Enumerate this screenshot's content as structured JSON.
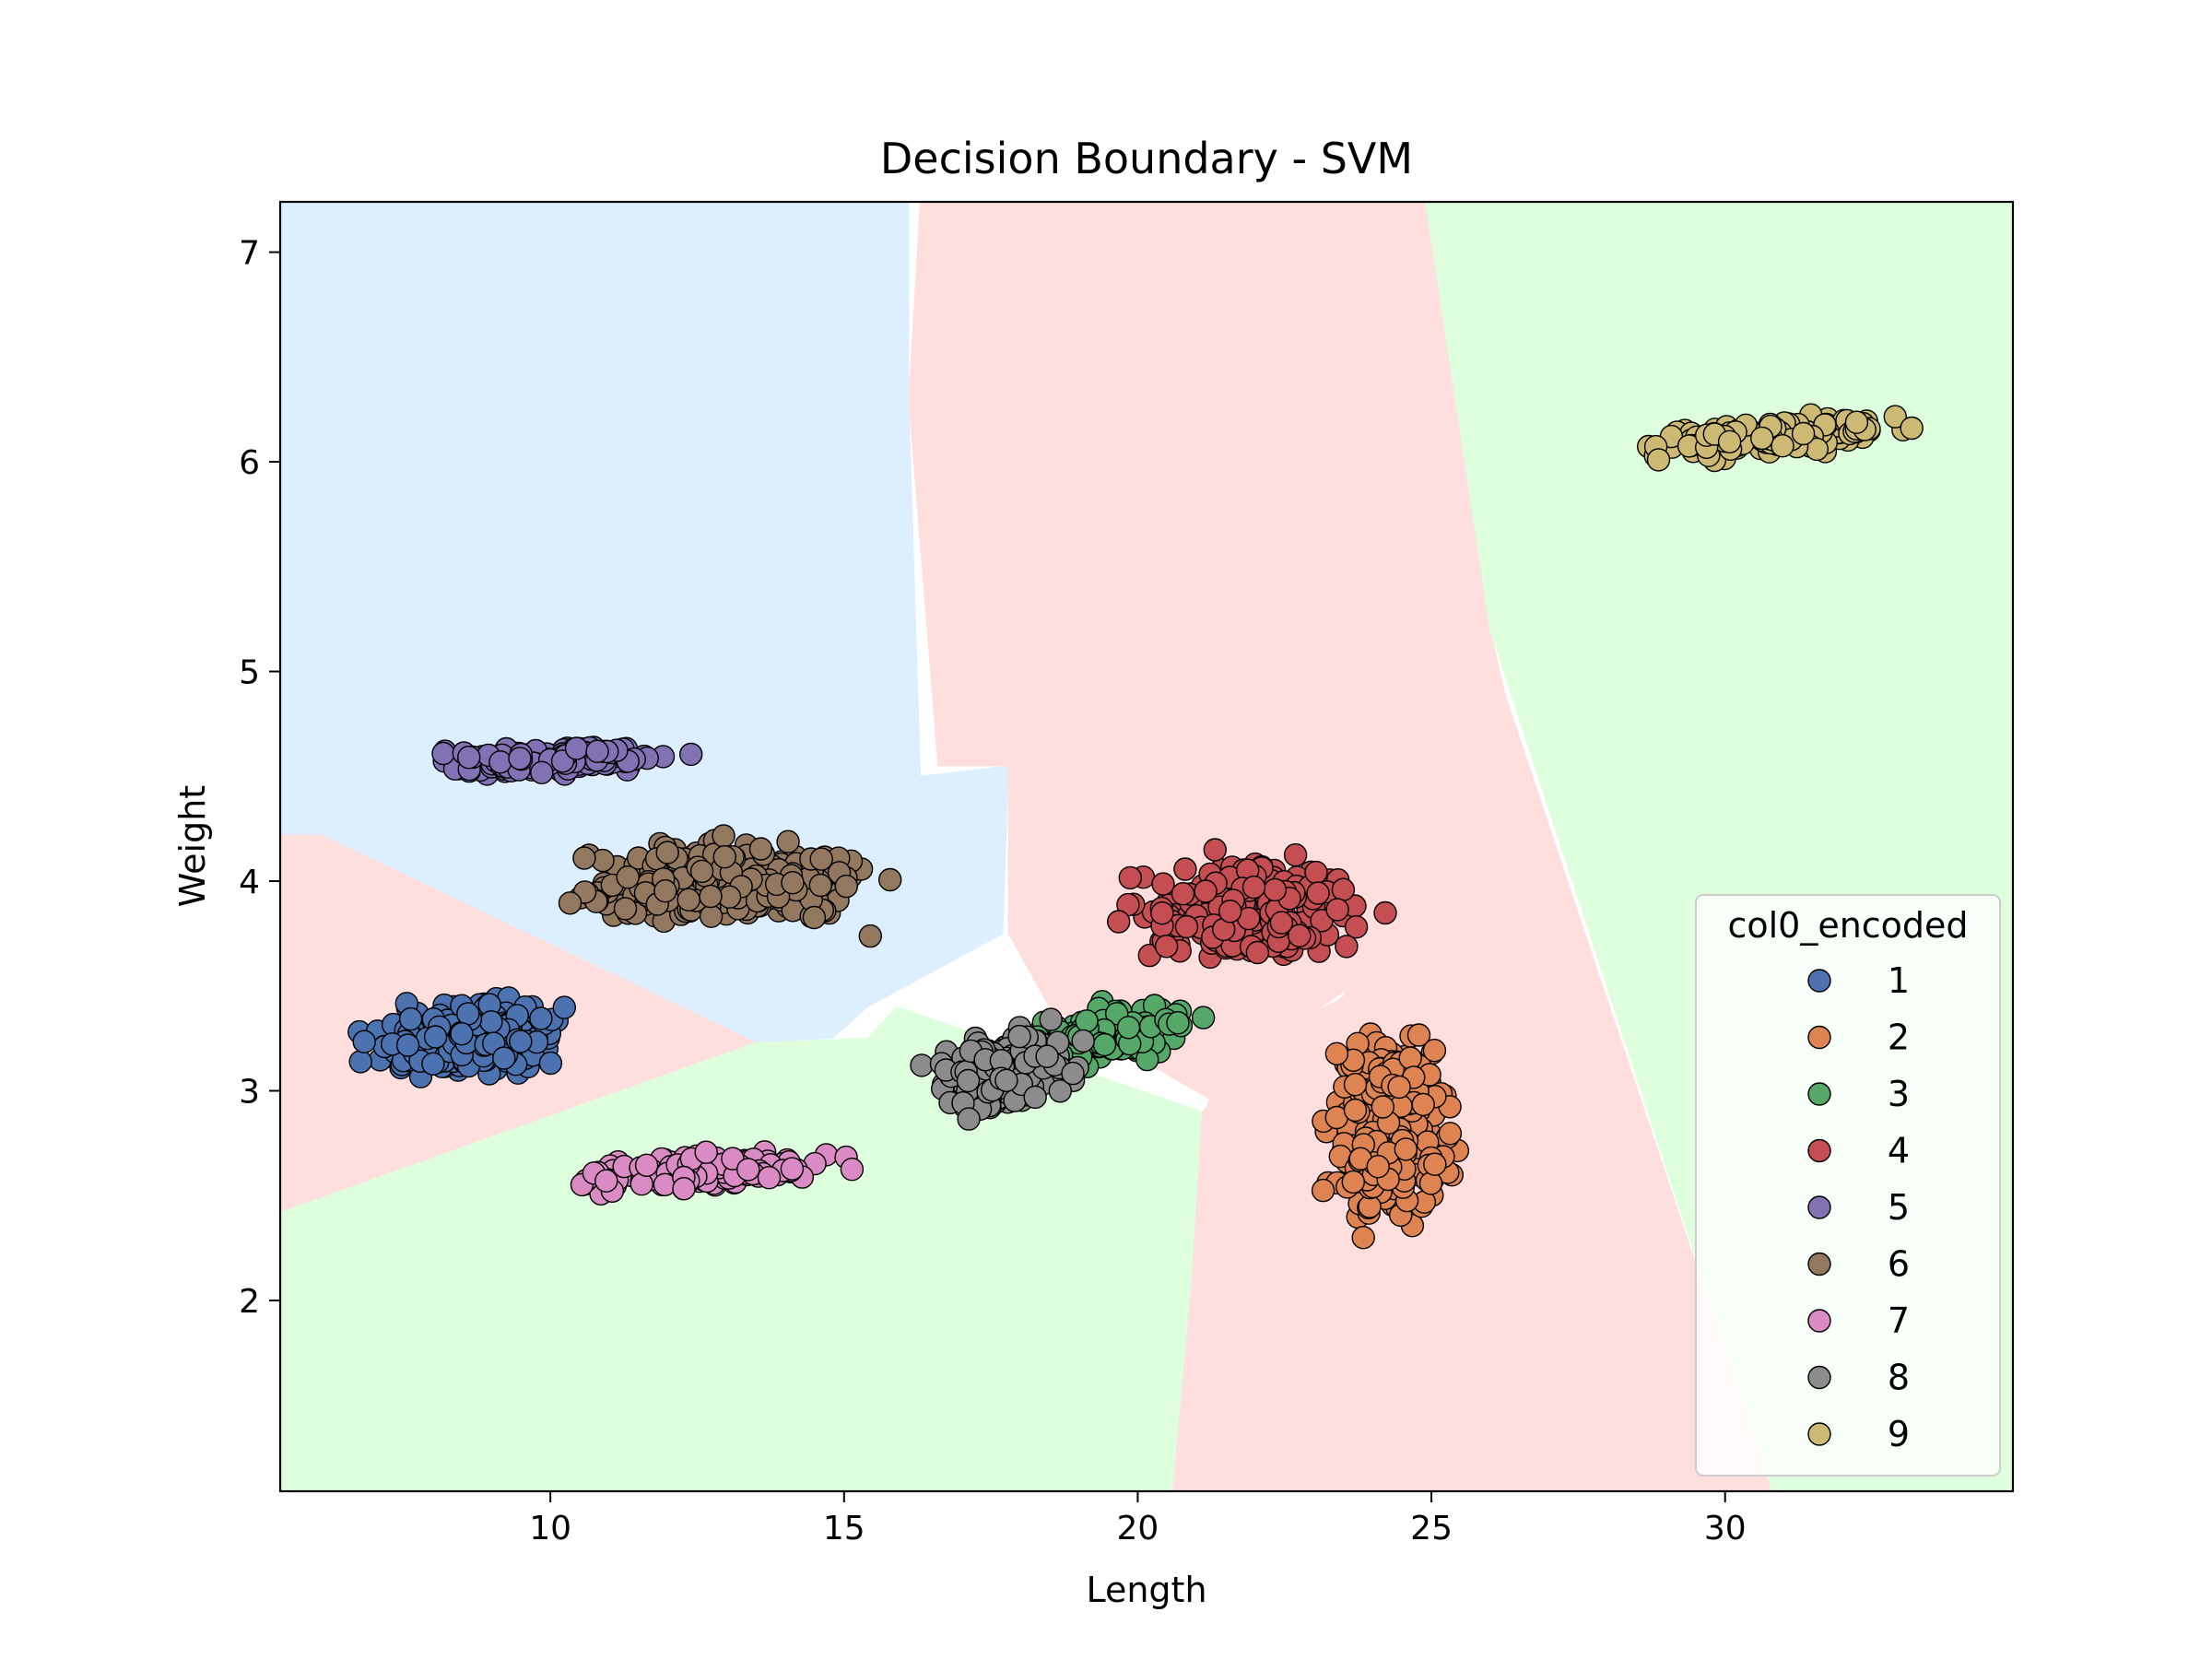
{
  "chart_data": {
    "type": "scatter",
    "title": "Decision Boundary - SVM",
    "xlabel": "Length",
    "ylabel": "Weight",
    "xlim": [
      5.4,
      34.9
    ],
    "ylim": [
      1.09,
      7.24
    ],
    "xticks": [
      10,
      15,
      20,
      25,
      30
    ],
    "yticks": [
      2,
      3,
      4,
      5,
      6,
      7
    ],
    "grid": false,
    "legend": {
      "title": "col0_encoded",
      "placement": "lower-right"
    },
    "region_colors": {
      "blue": "#ddeeff",
      "red": "#ffdede",
      "green": "#ddffdd"
    },
    "regions": [
      {
        "color": "blue",
        "points": [
          [
            5.4,
            7.24
          ],
          [
            16.1,
            7.24
          ],
          [
            16.1,
            6.3
          ],
          [
            16.3,
            4.5
          ],
          [
            17.8,
            4.55
          ],
          [
            17.7,
            3.75
          ],
          [
            15.4,
            3.4
          ],
          [
            14.8,
            3.25
          ],
          [
            13.3,
            3.23
          ],
          [
            8.2,
            3.23
          ],
          [
            6.1,
            4.22
          ],
          [
            5.4,
            4.22
          ]
        ]
      },
      {
        "color": "red",
        "points": [
          [
            5.4,
            4.22
          ],
          [
            6.1,
            4.22
          ],
          [
            13.5,
            3.23
          ],
          [
            5.4,
            2.42
          ]
        ]
      },
      {
        "color": "green",
        "points": [
          [
            5.4,
            2.42
          ],
          [
            13.5,
            3.23
          ],
          [
            15.4,
            3.25
          ],
          [
            15.9,
            3.4
          ],
          [
            21.1,
            2.9
          ],
          [
            21.1,
            1.09
          ],
          [
            5.4,
            1.09
          ]
        ]
      },
      {
        "color": "red",
        "points": [
          [
            16.3,
            7.24
          ],
          [
            24.9,
            7.24
          ],
          [
            26.0,
            5.2
          ],
          [
            26.7,
            3.85
          ],
          [
            22.4,
            3.3
          ],
          [
            21.1,
            2.9
          ],
          [
            20.7,
            1.09
          ],
          [
            30.8,
            1.09
          ],
          [
            28.8,
            1.8
          ],
          [
            26.0,
            5.2
          ],
          [
            24.9,
            7.24
          ]
        ]
      },
      {
        "color": "red",
        "points": [
          [
            16.3,
            7.24
          ],
          [
            24.9,
            7.24
          ],
          [
            26.7,
            3.85
          ],
          [
            23.9,
            3.55
          ],
          [
            22.6,
            3.3
          ],
          [
            22.1,
            2.82
          ],
          [
            18.5,
            3.4
          ],
          [
            17.8,
            3.75
          ],
          [
            17.8,
            4.55
          ],
          [
            16.6,
            4.55
          ],
          [
            16.1,
            6.3
          ]
        ]
      },
      {
        "color": "red",
        "points": [
          [
            20.6,
            1.09
          ],
          [
            21.2,
            2.95
          ],
          [
            23.5,
            3.45
          ],
          [
            26.0,
            5.1
          ],
          [
            30.8,
            1.09
          ]
        ]
      },
      {
        "color": "green",
        "points": [
          [
            24.9,
            7.24
          ],
          [
            34.9,
            7.24
          ],
          [
            34.9,
            1.09
          ],
          [
            30.8,
            1.09
          ],
          [
            26.0,
            5.2
          ]
        ]
      }
    ],
    "series": [
      {
        "name": "1",
        "color": "#4c72b0",
        "cluster": {
          "x": [
            6.3,
            10.8
          ],
          "y": [
            3.0,
            3.5
          ],
          "n": 320,
          "tilt": 0.02
        }
      },
      {
        "name": "2",
        "color": "#dd8452",
        "cluster": {
          "x": [
            22.8,
            25.8
          ],
          "y": [
            2.05,
            3.6
          ],
          "n": 280,
          "tilt": 0.0
        }
      },
      {
        "name": "3",
        "color": "#55a868",
        "cluster": {
          "x": [
            17.0,
            21.6
          ],
          "y": [
            3.05,
            3.45
          ],
          "n": 200,
          "tilt": 0.06
        }
      },
      {
        "name": "4",
        "color": "#c44e52",
        "cluster": {
          "x": [
            19.2,
            24.6
          ],
          "y": [
            3.5,
            4.22
          ],
          "n": 260,
          "tilt": 0.01
        }
      },
      {
        "name": "5",
        "color": "#8172b3",
        "cluster": {
          "x": [
            7.0,
            12.9
          ],
          "y": [
            4.48,
            4.68
          ],
          "n": 170,
          "tilt": 0.01
        }
      },
      {
        "name": "6",
        "color": "#937860",
        "cluster": {
          "x": [
            9.3,
            16.5
          ],
          "y": [
            3.7,
            4.3
          ],
          "n": 330,
          "tilt": 0.0
        }
      },
      {
        "name": "7",
        "color": "#da8bc3",
        "cluster": {
          "x": [
            9.7,
            15.4
          ],
          "y": [
            2.5,
            2.73
          ],
          "n": 180,
          "tilt": 0.02
        }
      },
      {
        "name": "8",
        "color": "#8c8c8c",
        "cluster": {
          "x": [
            16.0,
            19.4
          ],
          "y": [
            2.8,
            3.4
          ],
          "n": 220,
          "tilt": 0.02
        }
      },
      {
        "name": "9",
        "color": "#ccb974",
        "cluster": {
          "x": [
            27.8,
            34.0
          ],
          "y": [
            6.0,
            6.25
          ],
          "n": 190,
          "tilt": 0.03
        }
      }
    ]
  }
}
